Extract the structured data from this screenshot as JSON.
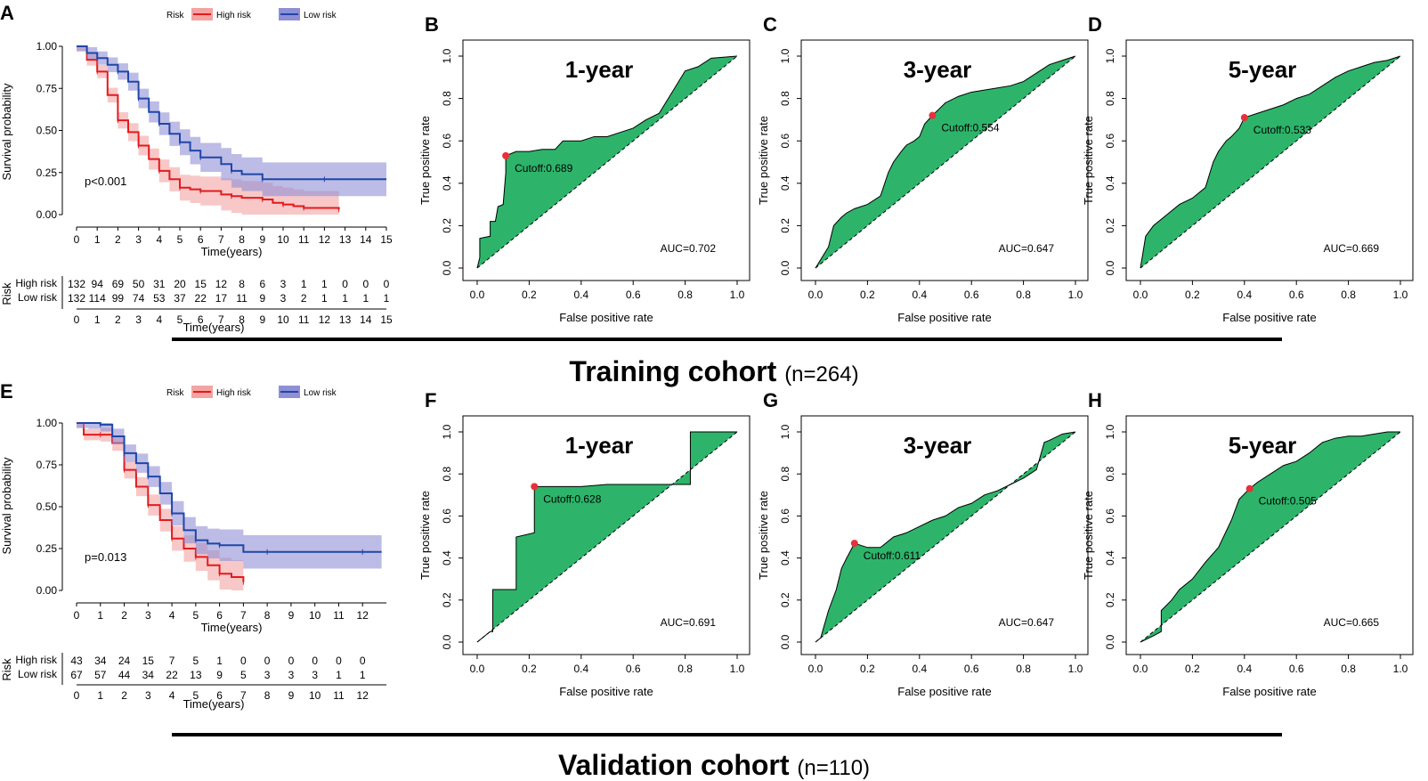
{
  "colors": {
    "high": "#e41a1c",
    "low": "#2046a8",
    "high_band": "#f4a3a3",
    "low_band": "#8f8fd6",
    "roc_fill": "#2db46a"
  },
  "cohorts": [
    {
      "title": "Training cohort",
      "n_label": "(n=264)"
    },
    {
      "title": "Validation cohort",
      "n_label": "(n=110)"
    }
  ],
  "chart_data": [
    {
      "id": "km_train",
      "type": "line",
      "panel_label": "A",
      "legend_title": "Risk",
      "legend": [
        "High risk",
        "Low risk"
      ],
      "xlabel": "Time(years)",
      "ylabel": "Survival probability",
      "xlim": [
        0,
        15
      ],
      "ylim": [
        0,
        1
      ],
      "xticks": [
        "0",
        "1",
        "2",
        "3",
        "4",
        "5",
        "6",
        "7",
        "8",
        "9",
        "10",
        "11",
        "12",
        "13",
        "14",
        "15"
      ],
      "yticks": [
        "0.00",
        "0.25",
        "0.50",
        "0.75",
        "1.00"
      ],
      "pvalue": "p<0.001",
      "series": [
        {
          "name": "High risk",
          "x": [
            0,
            0.5,
            1,
            1.5,
            2,
            2.5,
            3,
            3.5,
            4,
            4.5,
            5,
            5.5,
            6,
            7,
            7.5,
            8,
            9,
            9.5,
            10,
            10.5,
            11,
            12,
            12.7
          ],
          "y": [
            1,
            0.92,
            0.85,
            0.71,
            0.56,
            0.49,
            0.41,
            0.33,
            0.26,
            0.21,
            0.16,
            0.15,
            0.14,
            0.12,
            0.11,
            0.1,
            0.09,
            0.07,
            0.06,
            0.05,
            0.04,
            0.04,
            0.03
          ]
        },
        {
          "name": "Low risk",
          "x": [
            0,
            0.5,
            1,
            1.5,
            2,
            2.5,
            3,
            3.5,
            4,
            4.5,
            5,
            5.5,
            6,
            7,
            7.5,
            8,
            9,
            10,
            12,
            15
          ],
          "y": [
            1,
            0.96,
            0.93,
            0.89,
            0.85,
            0.79,
            0.69,
            0.61,
            0.54,
            0.48,
            0.43,
            0.38,
            0.34,
            0.3,
            0.26,
            0.24,
            0.21,
            0.21,
            0.21,
            0.21
          ]
        }
      ],
      "risk_table": {
        "label": "Risk",
        "xlabel": "Time(years)",
        "times": [
          "0",
          "1",
          "2",
          "3",
          "4",
          "5",
          "6",
          "7",
          "8",
          "9",
          "10",
          "11",
          "12",
          "13",
          "14",
          "15"
        ],
        "rows": [
          {
            "name": "High risk",
            "counts": [
              "132",
              "94",
              "69",
              "50",
              "31",
              "20",
              "15",
              "12",
              "8",
              "6",
              "3",
              "1",
              "1",
              "0",
              "0",
              "0"
            ]
          },
          {
            "name": "Low risk",
            "counts": [
              "132",
              "114",
              "99",
              "74",
              "53",
              "37",
              "22",
              "17",
              "11",
              "9",
              "3",
              "2",
              "1",
              "1",
              "1",
              "1"
            ]
          }
        ]
      }
    },
    {
      "id": "roc_train_1",
      "type": "area",
      "panel_label": "B",
      "title": "1-year",
      "xlabel": "False positive rate",
      "ylabel": "True positive rate",
      "xticks": [
        "0.0",
        "0.2",
        "0.4",
        "0.6",
        "0.8",
        "1.0"
      ],
      "yticks": [
        "0.0",
        "0.2",
        "0.4",
        "0.6",
        "0.8",
        "1.0"
      ],
      "cutoff": {
        "fpr": 0.11,
        "tpr": 0.53,
        "label": "Cutoff:0.689"
      },
      "auc": "AUC=0.702",
      "fpr": [
        0,
        0.01,
        0.01,
        0.05,
        0.05,
        0.07,
        0.08,
        0.1,
        0.11,
        0.11,
        0.15,
        0.2,
        0.25,
        0.3,
        0.33,
        0.4,
        0.45,
        0.5,
        0.55,
        0.6,
        0.65,
        0.7,
        0.75,
        0.8,
        0.85,
        0.9,
        1.0
      ],
      "tpr": [
        0,
        0.05,
        0.14,
        0.15,
        0.22,
        0.22,
        0.29,
        0.3,
        0.45,
        0.53,
        0.55,
        0.55,
        0.56,
        0.56,
        0.6,
        0.6,
        0.62,
        0.62,
        0.64,
        0.66,
        0.7,
        0.73,
        0.83,
        0.93,
        0.95,
        0.99,
        1.0
      ]
    },
    {
      "id": "roc_train_3",
      "type": "area",
      "panel_label": "C",
      "title": "3-year",
      "xlabel": "False positive rate",
      "ylabel": "True positive rate",
      "xticks": [
        "0.0",
        "0.2",
        "0.4",
        "0.6",
        "0.8",
        "1.0"
      ],
      "yticks": [
        "0.0",
        "0.2",
        "0.4",
        "0.6",
        "0.8",
        "1.0"
      ],
      "cutoff": {
        "fpr": 0.45,
        "tpr": 0.72,
        "label": "Cutoff:0.554"
      },
      "auc": "AUC=0.647",
      "fpr": [
        0,
        0.02,
        0.05,
        0.07,
        0.1,
        0.12,
        0.15,
        0.2,
        0.25,
        0.28,
        0.3,
        0.33,
        0.35,
        0.38,
        0.4,
        0.42,
        0.45,
        0.5,
        0.55,
        0.6,
        0.65,
        0.7,
        0.75,
        0.8,
        0.85,
        0.9,
        0.95,
        1.0
      ],
      "tpr": [
        0,
        0.04,
        0.1,
        0.2,
        0.24,
        0.26,
        0.28,
        0.3,
        0.34,
        0.45,
        0.5,
        0.55,
        0.58,
        0.6,
        0.62,
        0.68,
        0.72,
        0.78,
        0.81,
        0.83,
        0.84,
        0.85,
        0.86,
        0.88,
        0.92,
        0.96,
        0.98,
        1.0
      ]
    },
    {
      "id": "roc_train_5",
      "type": "area",
      "panel_label": "D",
      "title": "5-year",
      "xlabel": "False positive rate",
      "ylabel": "True positive rate",
      "xticks": [
        "0.0",
        "0.2",
        "0.4",
        "0.6",
        "0.8",
        "1.0"
      ],
      "yticks": [
        "0.0",
        "0.2",
        "0.4",
        "0.6",
        "0.8",
        "1.0"
      ],
      "cutoff": {
        "fpr": 0.4,
        "tpr": 0.71,
        "label": "Cutoff:0.533"
      },
      "auc": "AUC=0.669",
      "fpr": [
        0,
        0.02,
        0.05,
        0.1,
        0.15,
        0.2,
        0.25,
        0.28,
        0.3,
        0.33,
        0.35,
        0.38,
        0.4,
        0.45,
        0.5,
        0.55,
        0.6,
        0.65,
        0.7,
        0.75,
        0.8,
        0.85,
        0.9,
        0.95,
        1.0
      ],
      "tpr": [
        0,
        0.15,
        0.2,
        0.25,
        0.3,
        0.33,
        0.38,
        0.5,
        0.55,
        0.6,
        0.62,
        0.66,
        0.71,
        0.73,
        0.75,
        0.77,
        0.8,
        0.82,
        0.86,
        0.9,
        0.93,
        0.95,
        0.97,
        0.98,
        1.0
      ]
    },
    {
      "id": "km_valid",
      "type": "line",
      "panel_label": "E",
      "legend_title": "Risk",
      "legend": [
        "High risk",
        "Low risk"
      ],
      "xlabel": "Time(years)",
      "ylabel": "Survival probability",
      "xlim": [
        0,
        13
      ],
      "ylim": [
        0,
        1
      ],
      "xticks": [
        "0",
        "1",
        "2",
        "3",
        "4",
        "5",
        "6",
        "7",
        "8",
        "9",
        "10",
        "11",
        "12"
      ],
      "yticks": [
        "0.00",
        "0.25",
        "0.50",
        "0.75",
        "1.00"
      ],
      "pvalue": "p=0.013",
      "series": [
        {
          "name": "High risk",
          "x": [
            0,
            0.3,
            1,
            1.5,
            2,
            2.5,
            3,
            3.5,
            4,
            4.5,
            5,
            5.5,
            6,
            6.5,
            7
          ],
          "y": [
            1,
            0.93,
            0.93,
            0.88,
            0.72,
            0.62,
            0.51,
            0.42,
            0.31,
            0.25,
            0.2,
            0.15,
            0.1,
            0.08,
            0.05
          ]
        },
        {
          "name": "Low risk",
          "x": [
            0,
            0.5,
            1,
            1.5,
            2,
            2.5,
            3,
            3.5,
            4,
            4.5,
            5,
            5.5,
            6,
            7,
            8,
            10,
            12,
            12.8
          ],
          "y": [
            1,
            1,
            0.99,
            0.92,
            0.82,
            0.76,
            0.68,
            0.58,
            0.46,
            0.36,
            0.3,
            0.28,
            0.27,
            0.23,
            0.23,
            0.23,
            0.23,
            0.23
          ]
        }
      ],
      "risk_table": {
        "label": "Risk",
        "xlabel": "Time(years)",
        "times": [
          "0",
          "1",
          "2",
          "3",
          "4",
          "5",
          "6",
          "7",
          "8",
          "9",
          "10",
          "11",
          "12"
        ],
        "rows": [
          {
            "name": "High risk",
            "counts": [
              "43",
              "34",
              "24",
              "15",
              "7",
              "5",
              "1",
              "0",
              "0",
              "0",
              "0",
              "0",
              "0"
            ]
          },
          {
            "name": "Low risk",
            "counts": [
              "67",
              "57",
              "44",
              "34",
              "22",
              "13",
              "9",
              "5",
              "3",
              "3",
              "3",
              "1",
              "1"
            ]
          }
        ]
      }
    },
    {
      "id": "roc_valid_1",
      "type": "area",
      "panel_label": "F",
      "title": "1-year",
      "xlabel": "False positive rate",
      "ylabel": "True positive rate",
      "xticks": [
        "0.0",
        "0.2",
        "0.4",
        "0.6",
        "0.8",
        "1.0"
      ],
      "yticks": [
        "0.0",
        "0.2",
        "0.4",
        "0.6",
        "0.8",
        "1.0"
      ],
      "cutoff": {
        "fpr": 0.22,
        "tpr": 0.74,
        "label": "Cutoff:0.628"
      },
      "auc": "AUC=0.691",
      "fpr": [
        0,
        0.05,
        0.06,
        0.06,
        0.15,
        0.15,
        0.22,
        0.22,
        0.3,
        0.4,
        0.5,
        0.6,
        0.7,
        0.82,
        0.82,
        0.88,
        0.95,
        1.0
      ],
      "tpr": [
        0,
        0.05,
        0.05,
        0.25,
        0.25,
        0.5,
        0.52,
        0.74,
        0.74,
        0.74,
        0.75,
        0.75,
        0.75,
        0.75,
        1.0,
        1.0,
        1.0,
        1.0
      ]
    },
    {
      "id": "roc_valid_3",
      "type": "area",
      "panel_label": "G",
      "title": "3-year",
      "xlabel": "False positive rate",
      "ylabel": "True positive rate",
      "xticks": [
        "0.0",
        "0.2",
        "0.4",
        "0.6",
        "0.8",
        "1.0"
      ],
      "yticks": [
        "0.0",
        "0.2",
        "0.4",
        "0.6",
        "0.8",
        "1.0"
      ],
      "cutoff": {
        "fpr": 0.15,
        "tpr": 0.47,
        "label": "Cutoff:0.611"
      },
      "auc": "AUC=0.647",
      "fpr": [
        0,
        0.02,
        0.05,
        0.08,
        0.1,
        0.12,
        0.15,
        0.2,
        0.25,
        0.3,
        0.35,
        0.4,
        0.45,
        0.5,
        0.55,
        0.6,
        0.65,
        0.7,
        0.75,
        0.8,
        0.85,
        0.88,
        0.9,
        0.95,
        1.0
      ],
      "tpr": [
        0,
        0.02,
        0.15,
        0.25,
        0.35,
        0.4,
        0.47,
        0.45,
        0.45,
        0.5,
        0.52,
        0.55,
        0.58,
        0.6,
        0.64,
        0.66,
        0.7,
        0.72,
        0.75,
        0.78,
        0.82,
        0.95,
        0.96,
        0.99,
        1.0
      ]
    },
    {
      "id": "roc_valid_5",
      "type": "area",
      "panel_label": "H",
      "title": "5-year",
      "xlabel": "False positive rate",
      "ylabel": "True positive rate",
      "xticks": [
        "0.0",
        "0.2",
        "0.4",
        "0.6",
        "0.8",
        "1.0"
      ],
      "yticks": [
        "0.0",
        "0.2",
        "0.4",
        "0.6",
        "0.8",
        "1.0"
      ],
      "cutoff": {
        "fpr": 0.42,
        "tpr": 0.73,
        "label": "Cutoff:0.505"
      },
      "auc": "AUC=0.665",
      "fpr": [
        0,
        0.05,
        0.08,
        0.08,
        0.12,
        0.15,
        0.2,
        0.25,
        0.3,
        0.35,
        0.38,
        0.42,
        0.45,
        0.5,
        0.55,
        0.6,
        0.65,
        0.7,
        0.75,
        0.8,
        0.85,
        0.9,
        0.95,
        1.0
      ],
      "tpr": [
        0,
        0.03,
        0.05,
        0.15,
        0.2,
        0.25,
        0.3,
        0.38,
        0.45,
        0.58,
        0.68,
        0.73,
        0.76,
        0.8,
        0.84,
        0.86,
        0.9,
        0.95,
        0.97,
        0.98,
        0.98,
        0.99,
        1.0,
        1.0
      ]
    }
  ]
}
